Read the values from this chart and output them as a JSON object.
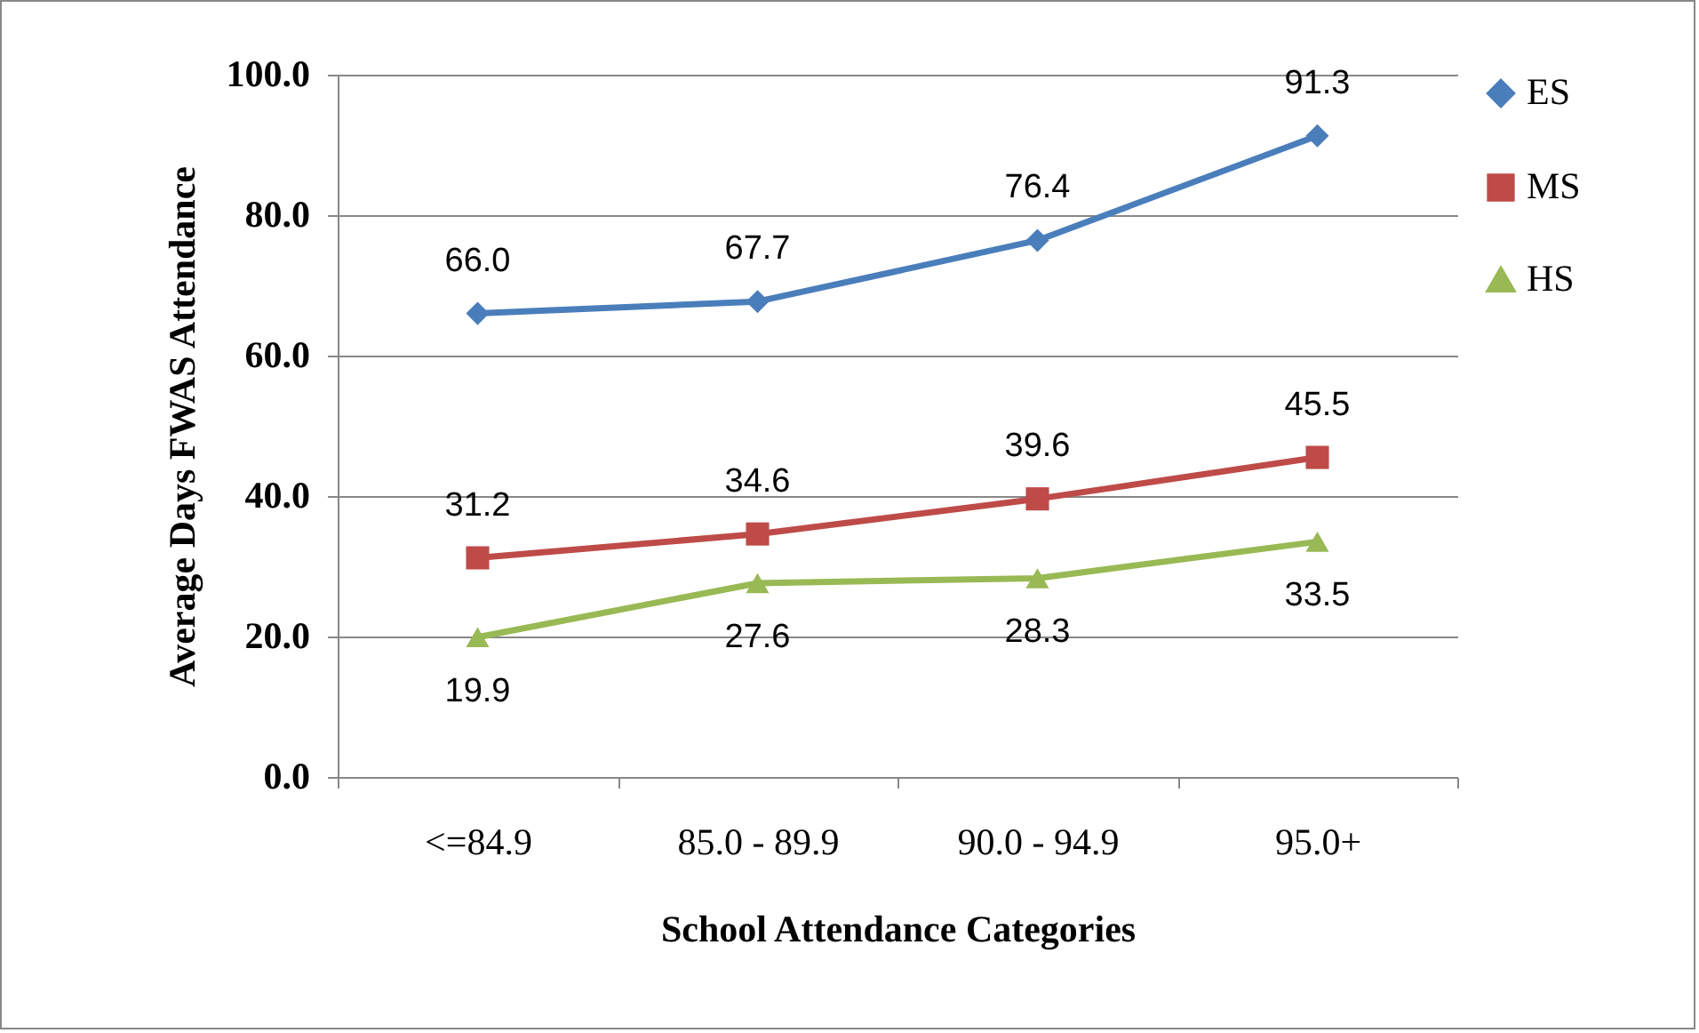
{
  "chart_data": {
    "type": "line",
    "xlabel": "School Attendance Categories",
    "ylabel": "Average Days FWAS Attendance",
    "categories": [
      "<=84.9",
      "85.0 - 89.9",
      "90.0 - 94.9",
      "95.0+"
    ],
    "series": [
      {
        "name": "ES",
        "color": "#4a7ebb",
        "marker": "diamond",
        "values": [
          66.0,
          67.7,
          76.4,
          91.3
        ],
        "value_labels": [
          "66.0",
          "67.7",
          "76.4",
          "91.3"
        ]
      },
      {
        "name": "MS",
        "color": "#be4b48",
        "marker": "square",
        "values": [
          31.2,
          34.6,
          39.6,
          45.5
        ],
        "value_labels": [
          "31.2",
          "34.6",
          "39.6",
          "45.5"
        ]
      },
      {
        "name": "HS",
        "color": "#98b954",
        "marker": "triangle",
        "values": [
          19.9,
          27.6,
          28.3,
          33.5
        ],
        "value_labels": [
          "19.9",
          "27.6",
          "28.3",
          "33.5"
        ]
      }
    ],
    "ylim": [
      0,
      100
    ],
    "yticks": [
      {
        "value": 0,
        "label": "0.0"
      },
      {
        "value": 20,
        "label": "20.0"
      },
      {
        "value": 40,
        "label": "40.0"
      },
      {
        "value": 60,
        "label": "60.0"
      },
      {
        "value": 80,
        "label": "80.0"
      },
      {
        "value": 100,
        "label": "100.0"
      }
    ],
    "grid": "y",
    "legend": "right",
    "line_style": "solid"
  }
}
